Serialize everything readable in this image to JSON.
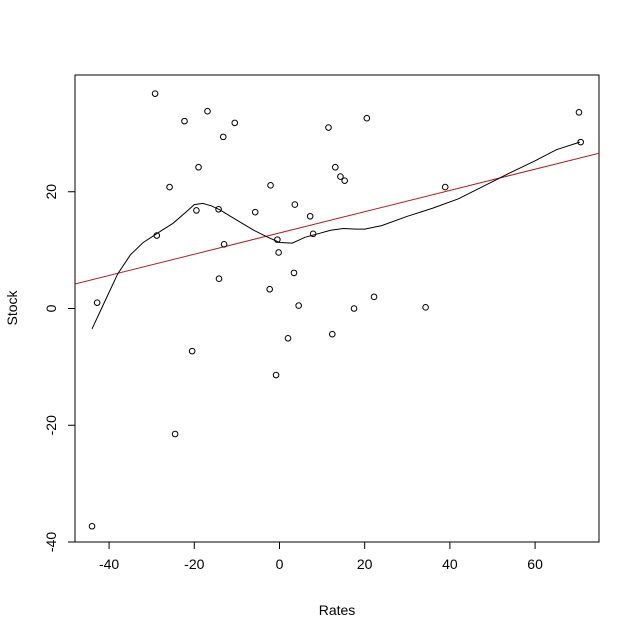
{
  "chart_data": {
    "type": "scatter",
    "title": "",
    "xlabel": "Rates",
    "ylabel": "Stock",
    "xlim": [
      -48,
      75
    ],
    "ylim": [
      -40,
      40
    ],
    "x_ticks": [
      -40,
      -20,
      0,
      20,
      40,
      60
    ],
    "y_ticks": [
      -40,
      -20,
      0,
      20
    ],
    "grid": false,
    "points": [
      {
        "x": -44,
        "y": -37.3
      },
      {
        "x": -42.8,
        "y": 1
      },
      {
        "x": -29.2,
        "y": 36.8
      },
      {
        "x": -28.8,
        "y": 12.5
      },
      {
        "x": -25.8,
        "y": 20.8
      },
      {
        "x": -24.5,
        "y": -21.5
      },
      {
        "x": -22.3,
        "y": 32.1
      },
      {
        "x": -20.5,
        "y": -7.3
      },
      {
        "x": -19.5,
        "y": 16.8
      },
      {
        "x": -19,
        "y": 24.2
      },
      {
        "x": -16.9,
        "y": 33.8
      },
      {
        "x": -14.3,
        "y": 17
      },
      {
        "x": -14.2,
        "y": 5.1
      },
      {
        "x": -13.2,
        "y": 29.4
      },
      {
        "x": -13,
        "y": 11
      },
      {
        "x": -10.5,
        "y": 31.8
      },
      {
        "x": -5.7,
        "y": 16.5
      },
      {
        "x": -2.3,
        "y": 3.3
      },
      {
        "x": -2.1,
        "y": 21.1
      },
      {
        "x": -0.8,
        "y": -11.4
      },
      {
        "x": -0.5,
        "y": 11.8
      },
      {
        "x": -0.2,
        "y": 9.6
      },
      {
        "x": 2,
        "y": -5.1
      },
      {
        "x": 3.4,
        "y": 6.1
      },
      {
        "x": 3.6,
        "y": 17.8
      },
      {
        "x": 4.5,
        "y": 0.5
      },
      {
        "x": 7.2,
        "y": 15.8
      },
      {
        "x": 7.9,
        "y": 12.8
      },
      {
        "x": 11.5,
        "y": 31
      },
      {
        "x": 12.4,
        "y": -4.4
      },
      {
        "x": 13.1,
        "y": 24.2
      },
      {
        "x": 14.3,
        "y": 22.6
      },
      {
        "x": 15.3,
        "y": 21.9
      },
      {
        "x": 17.5,
        "y": 0
      },
      {
        "x": 20.5,
        "y": 32.6
      },
      {
        "x": 22.2,
        "y": 2
      },
      {
        "x": 34.3,
        "y": 0.2
      },
      {
        "x": 38.9,
        "y": 20.8
      },
      {
        "x": 70.3,
        "y": 33.6
      },
      {
        "x": 70.7,
        "y": 28.5
      }
    ],
    "regression_line": {
      "color": "#b22222",
      "points": [
        [
          -48,
          4.2
        ],
        [
          75,
          26.6
        ]
      ]
    },
    "smooth_curve": {
      "color": "#000000",
      "points": [
        [
          -44,
          -3.5
        ],
        [
          -41,
          1.2
        ],
        [
          -38,
          5.9
        ],
        [
          -35,
          9.2
        ],
        [
          -32,
          11.3
        ],
        [
          -28,
          13.2
        ],
        [
          -25,
          14.6
        ],
        [
          -22,
          16.5
        ],
        [
          -20,
          17.8
        ],
        [
          -18,
          18
        ],
        [
          -16,
          17.6
        ],
        [
          -14,
          16.9
        ],
        [
          -12,
          16
        ],
        [
          -9,
          14.7
        ],
        [
          -6,
          13.4
        ],
        [
          -3,
          12.3
        ],
        [
          0,
          11.3
        ],
        [
          3,
          11.2
        ],
        [
          6,
          12.2
        ],
        [
          9,
          12.8
        ],
        [
          12,
          13.4
        ],
        [
          15,
          13.7
        ],
        [
          18,
          13.6
        ],
        [
          20,
          13.6
        ],
        [
          24,
          14.2
        ],
        [
          30,
          15.8
        ],
        [
          36,
          17.2
        ],
        [
          42,
          18.8
        ],
        [
          48,
          21
        ],
        [
          54,
          23.2
        ],
        [
          60,
          25.3
        ],
        [
          65,
          27.2
        ],
        [
          70.5,
          28.5
        ]
      ]
    }
  }
}
